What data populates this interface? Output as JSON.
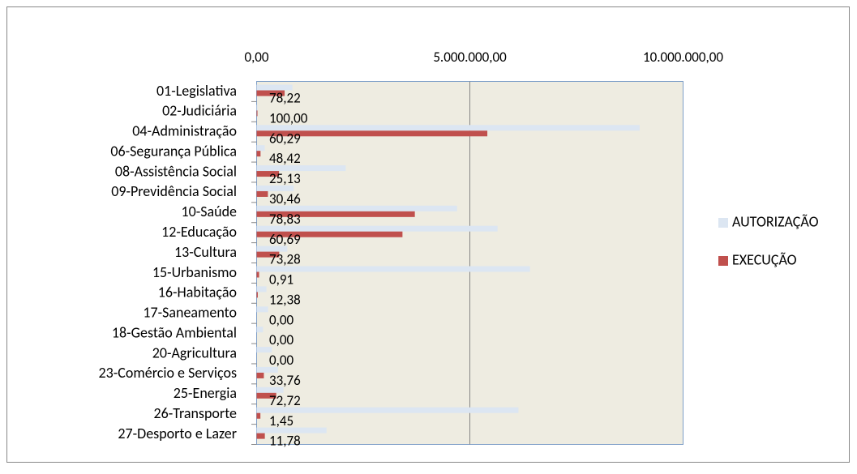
{
  "chart_data": {
    "type": "hbar",
    "categories": [
      "01-Legislativa",
      "02-Judiciária",
      "04-Administração",
      "06-Segurança Pública",
      "08-Assistência Social",
      "09-Previdência Social",
      "10-Saúde",
      "12-Educação",
      "13-Cultura",
      "15-Urbanismo",
      "16-Habitação",
      "17-Saneamento",
      "18-Gestão Ambiental",
      "20-Agricultura",
      "23-Comércio e Serviços",
      "25-Energia",
      "26-Transporte",
      "27-Desporto e Lazer"
    ],
    "series": [
      {
        "name": "AUTORIZAÇÃO",
        "color": "#dce6f2",
        "values": [
          840000,
          20000,
          8980000,
          190000,
          2090000,
          870000,
          4700000,
          5650000,
          720000,
          6410000,
          230000,
          270000,
          150000,
          360000,
          500000,
          630000,
          6140000,
          1640000
        ]
      },
      {
        "name": "EXECUÇÃO",
        "color": "#c0504d",
        "values": [
          657000,
          20000,
          5410000,
          92000,
          525000,
          265000,
          3710000,
          3420000,
          530000,
          58000,
          28000,
          0,
          0,
          0,
          170000,
          460000,
          89000,
          193000
        ]
      }
    ],
    "data_labels": [
      "78,22",
      "100,00",
      "60,29",
      "48,42",
      "25,13",
      "30,46",
      "78,83",
      "60,69",
      "73,28",
      "0,91",
      "12,38",
      "0,00",
      "0,00",
      "0,00",
      "33,76",
      "72,72",
      "1,45",
      "11,78"
    ],
    "xlim": [
      0,
      10000000
    ],
    "xticks": [
      {
        "value": 0,
        "label": "0,00"
      },
      {
        "value": 5000000,
        "label": "5.000.000,00"
      },
      {
        "value": 10000000,
        "label": "10.000.000,00"
      }
    ],
    "grid": true,
    "legend": "right"
  }
}
